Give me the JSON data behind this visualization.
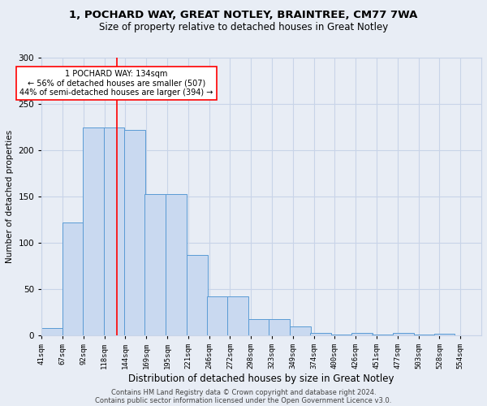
{
  "title1": "1, POCHARD WAY, GREAT NOTLEY, BRAINTREE, CM77 7WA",
  "title2": "Size of property relative to detached houses in Great Notley",
  "xlabel": "Distribution of detached houses by size in Great Notley",
  "ylabel": "Number of detached properties",
  "footnote1": "Contains HM Land Registry data © Crown copyright and database right 2024.",
  "footnote2": "Contains public sector information licensed under the Open Government Licence v3.0.",
  "bar_left_edges": [
    41,
    67,
    92,
    118,
    144,
    169,
    195,
    221,
    246,
    272,
    298,
    323,
    349,
    374,
    400,
    426,
    451,
    477,
    503,
    528
  ],
  "bar_heights": [
    8,
    122,
    225,
    225,
    222,
    153,
    153,
    87,
    42,
    42,
    18,
    18,
    10,
    3,
    1,
    3,
    1,
    3,
    1,
    2
  ],
  "bin_width": 26,
  "bar_color": "#c9d9f0",
  "bar_edge_color": "#5a9bd5",
  "grid_color": "#c8d4e8",
  "bg_color": "#e8edf5",
  "red_line_x": 134,
  "annotation_text": "1 POCHARD WAY: 134sqm\n← 56% of detached houses are smaller (507)\n44% of semi-detached houses are larger (394) →",
  "annotation_box_color": "white",
  "annotation_box_edge_color": "red",
  "ylim": [
    0,
    300
  ],
  "yticks": [
    0,
    50,
    100,
    150,
    200,
    250,
    300
  ],
  "xtick_labels": [
    "41sqm",
    "67sqm",
    "92sqm",
    "118sqm",
    "144sqm",
    "169sqm",
    "195sqm",
    "221sqm",
    "246sqm",
    "272sqm",
    "298sqm",
    "323sqm",
    "349sqm",
    "374sqm",
    "400sqm",
    "426sqm",
    "451sqm",
    "477sqm",
    "503sqm",
    "528sqm",
    "554sqm"
  ],
  "title1_fontsize": 9.5,
  "title2_fontsize": 8.5,
  "xlabel_fontsize": 8.5,
  "ylabel_fontsize": 7.5,
  "tick_fontsize": 6.5,
  "footnote_fontsize": 6.0,
  "annotation_fontsize": 7.0
}
